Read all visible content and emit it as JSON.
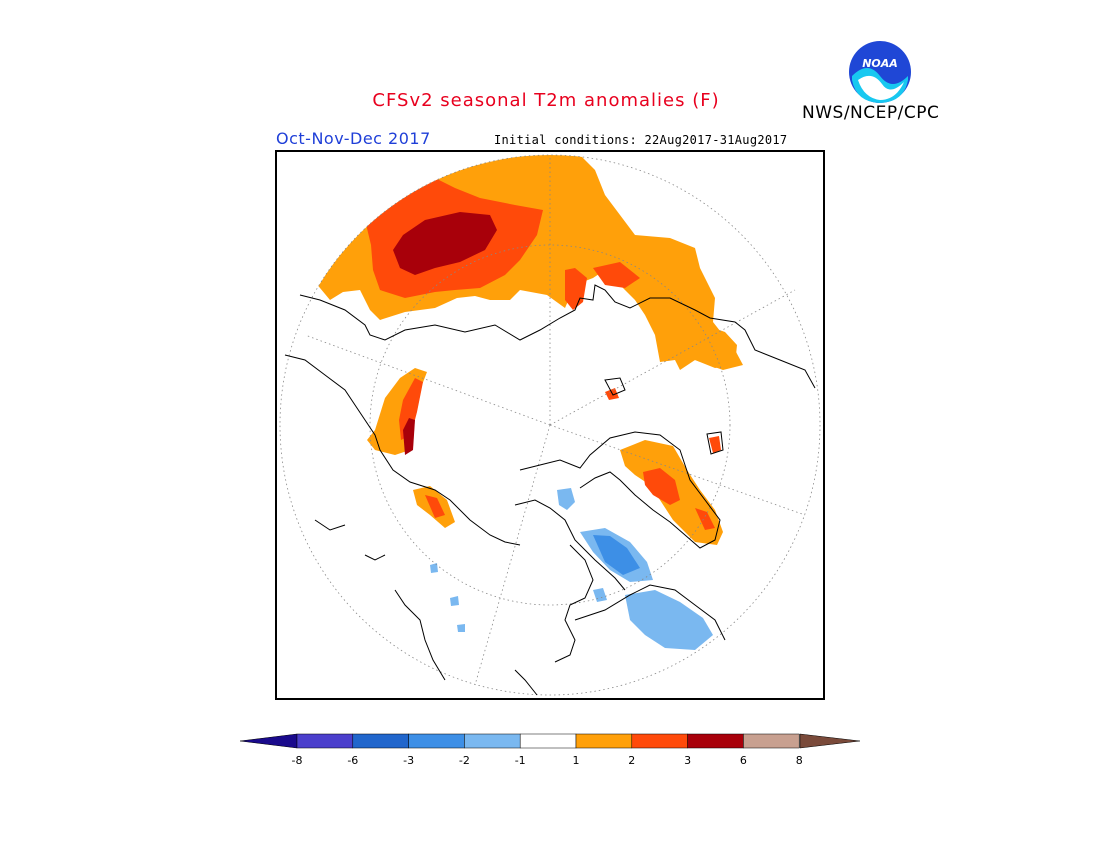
{
  "title": "CFSv2 seasonal T2m anomalies (F)",
  "agency": "NWS/NCEP/CPC",
  "logo_text": "NOAA",
  "season": "Oct-Nov-Dec 2017",
  "initial_conditions": "Initial conditions: 22Aug2017-31Aug2017",
  "colorbar": {
    "below_color": "#1a0a8c",
    "above_color": "#7a4a3a",
    "bins": [
      {
        "color": "#4b3fcc",
        "label": "-8"
      },
      {
        "color": "#2166cc",
        "label": "-6"
      },
      {
        "color": "#3d8fe6",
        "label": "-3"
      },
      {
        "color": "#7ab8f0",
        "label": "-2"
      },
      {
        "color": "#ffffff",
        "label": "-1"
      },
      {
        "color": "#ffa00a",
        "label": "1"
      },
      {
        "color": "#ff4a0a",
        "label": "2"
      },
      {
        "color": "#a8000a",
        "label": "3"
      },
      {
        "color": "#c8a090",
        "label": "6"
      }
    ],
    "last_label": "8"
  },
  "colors": {
    "title": "#e8001e",
    "season": "#1f3fd8",
    "warm_1": "#ffa00a",
    "warm_2": "#ff4a0a",
    "warm_3": "#a8000a",
    "cool_1": "#7ab8f0",
    "cool_2": "#3d8fe6"
  }
}
